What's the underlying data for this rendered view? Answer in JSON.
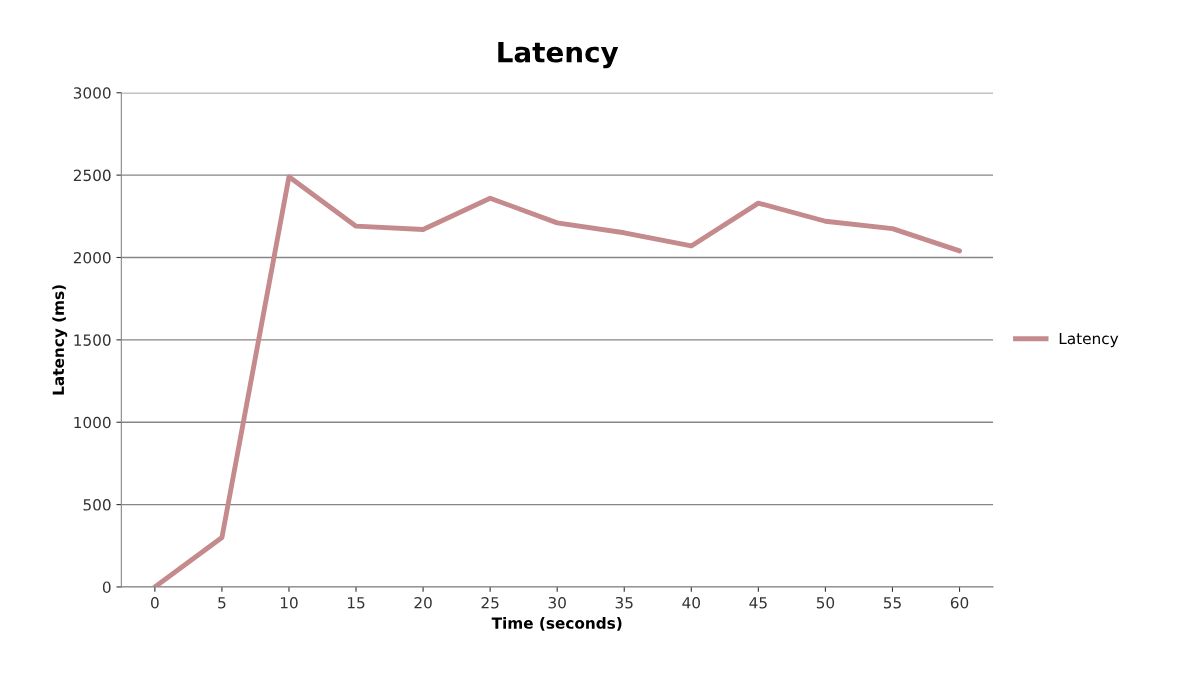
{
  "chart_data": {
    "type": "line",
    "title": "Latency",
    "xlabel": "Time (seconds)",
    "ylabel": "Latency (ms)",
    "categories": [
      "0",
      "5",
      "10",
      "15",
      "20",
      "25",
      "30",
      "35",
      "40",
      "45",
      "50",
      "55",
      "60"
    ],
    "series": [
      {
        "name": "Latency",
        "color": "#c48a8c",
        "values": [
          0,
          300,
          2490,
          2190,
          2170,
          2360,
          2210,
          2150,
          2070,
          2330,
          2220,
          2175,
          2040
        ]
      }
    ],
    "ylim": [
      0,
      3000
    ],
    "yticks": [
      0,
      500,
      1000,
      1500,
      2000,
      2500,
      3000
    ],
    "grid": "y",
    "legend": "right",
    "marker": "none",
    "line_style": "solid"
  }
}
